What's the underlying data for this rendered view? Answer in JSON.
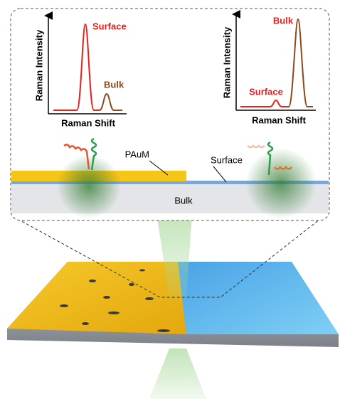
{
  "left_inset": {
    "y_label": "Raman Intensity",
    "x_label": "Raman Shift",
    "peak_labels": [
      "Surface",
      "Bulk"
    ]
  },
  "right_inset": {
    "y_label": "Raman Intensity",
    "x_label": "Raman Shift",
    "peak_labels": [
      "Bulk",
      "Surface"
    ]
  },
  "cross_section": {
    "film_label": "PAuM",
    "surface_label": "Surface",
    "bulk_label": "Bulk"
  }
}
